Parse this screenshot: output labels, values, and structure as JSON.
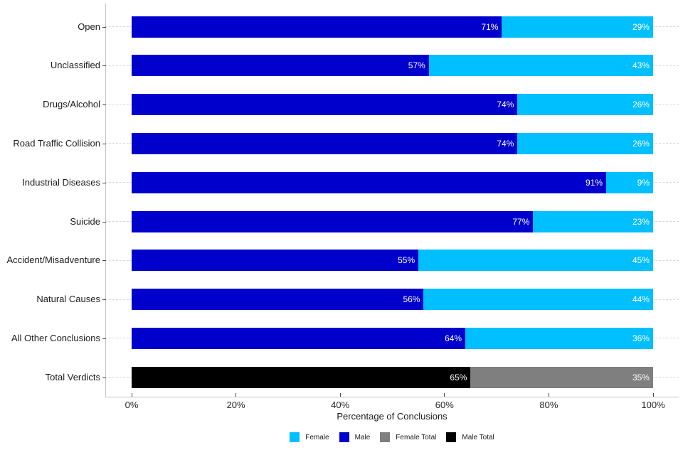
{
  "chart_data": {
    "type": "bar",
    "orientation": "horizontal",
    "stacked": true,
    "title": "",
    "xlabel": "Percentage of Conclusions",
    "xlim": [
      0,
      100
    ],
    "x_tick_values": [
      0,
      20,
      40,
      60,
      80,
      100
    ],
    "x_tick_labels": [
      "0%",
      "20%",
      "40%",
      "60%",
      "80%",
      "100%"
    ],
    "categories": [
      "Open",
      "Unclassified",
      "Drugs/Alcohol",
      "Road Traffic Collision",
      "Industrial Diseases",
      "Suicide",
      "Accident/Misadventure",
      "Natural Causes",
      "All Other Conclusions",
      "Total Verdicts"
    ],
    "series": [
      {
        "name": "Male",
        "values": [
          71,
          57,
          74,
          74,
          91,
          77,
          55,
          56,
          64,
          65
        ]
      },
      {
        "name": "Female",
        "values": [
          29,
          43,
          26,
          26,
          9,
          23,
          45,
          44,
          36,
          35
        ]
      }
    ],
    "value_label_format": "{value}%",
    "grid": "dashed-horizontal-per-category",
    "legend_position": "bottom-center",
    "legend": [
      {
        "label": "Female",
        "color": "#00BFFF"
      },
      {
        "label": "Male",
        "color": "#0000CD"
      },
      {
        "label": "Female Total",
        "color": "#7F7F7F"
      },
      {
        "label": "Male Total",
        "color": "#000000"
      }
    ],
    "total_row": {
      "category": "Total Verdicts",
      "male_color": "#000000",
      "female_color": "#7F7F7F"
    }
  },
  "colors": {
    "male": "#0000CD",
    "female": "#00BFFF",
    "male_total": "#000000",
    "female_total": "#7F7F7F",
    "bar_label_text": "#FFFFFF",
    "axis_line": "#C4C4C4",
    "gridline": "#D8D8D8",
    "tick": "#4A4A4A",
    "axis_text": "#262626"
  }
}
